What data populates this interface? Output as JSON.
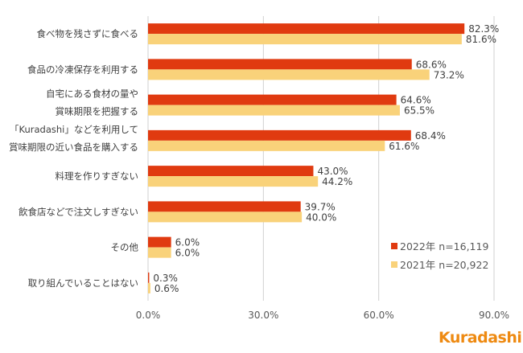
{
  "chart_data": {
    "type": "bar",
    "orientation": "horizontal",
    "categories": [
      [
        "食べ物を残さずに食べる"
      ],
      [
        "食品の冷凍保存を利用する"
      ],
      [
        "自宅にある食材の量や",
        "賞味期限を把握する"
      ],
      [
        "「Kuradashi」などを利用して",
        "賞味期限の近い食品を購入する"
      ],
      [
        "料理を作りすぎない"
      ],
      [
        "飲食店などで注文しすぎない"
      ],
      [
        "その他"
      ],
      [
        "取り組んでいることはない"
      ]
    ],
    "series": [
      {
        "name": "2022年 n=16,119",
        "color": "#E03A10",
        "values": [
          82.3,
          68.6,
          64.6,
          68.4,
          43.0,
          39.7,
          6.0,
          0.3
        ],
        "labels": [
          "82.3%",
          "68.6%",
          "64.6%",
          "68.4%",
          "43.0%",
          "39.7%",
          "6.0%",
          "0.3%"
        ]
      },
      {
        "name": "2021年 n=20,922",
        "color": "#F9D27A",
        "values": [
          81.6,
          73.2,
          65.5,
          61.6,
          44.2,
          40.0,
          6.0,
          0.6
        ],
        "labels": [
          "81.6%",
          "73.2%",
          "65.5%",
          "61.6%",
          "44.2%",
          "40.0%",
          "6.0%",
          "0.6%"
        ]
      }
    ],
    "xlim": [
      0,
      90
    ],
    "xticks": [
      "0.0%",
      "30.0%",
      "60.0%",
      "90.0%"
    ],
    "xtick_values": [
      0,
      30,
      60,
      90
    ],
    "grid": true,
    "legend": "bottom-right"
  },
  "logo": {
    "text": "Kuradashi",
    "color": "#EE8A12"
  }
}
